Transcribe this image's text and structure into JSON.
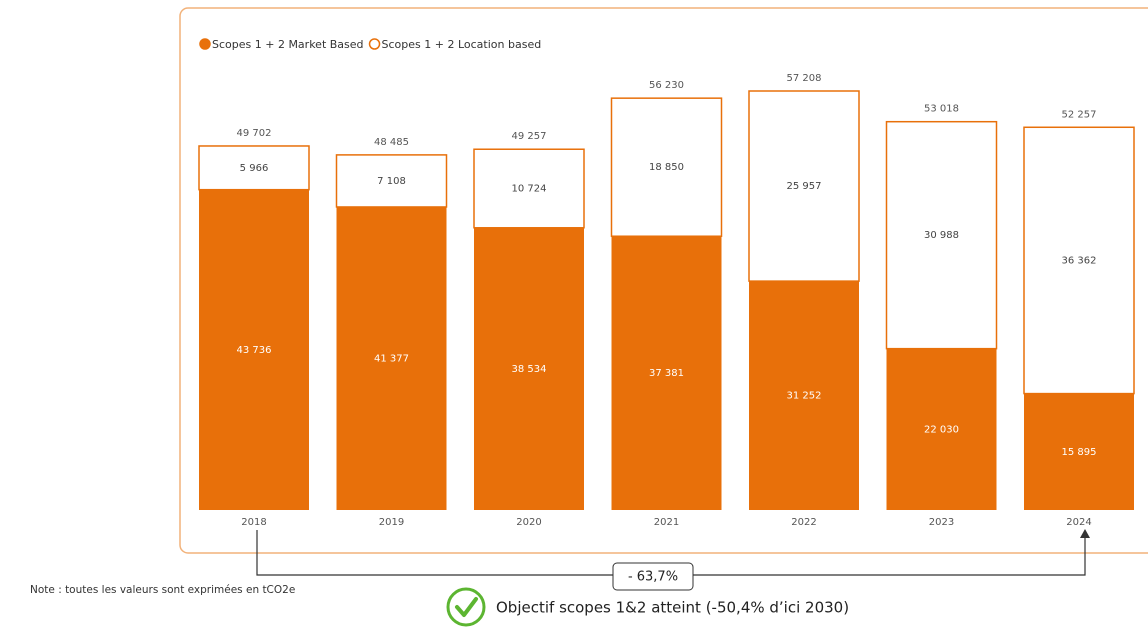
{
  "chart_data": {
    "type": "stacked_bar",
    "categories": [
      "2018",
      "2019",
      "2020",
      "2021",
      "2022",
      "2023",
      "2024"
    ],
    "series": [
      {
        "name": "Scopes 1 + 2 Market Based",
        "color": "#e8700a",
        "values": [
          43736,
          41377,
          38534,
          37381,
          31252,
          22030,
          15895
        ],
        "value_labels": [
          "43 736",
          "41 377",
          "38 534",
          "37 381",
          "31 252",
          "22 030",
          "15 895"
        ]
      },
      {
        "name": "Scopes 1 + 2 Location based",
        "color": "#ffffff",
        "values": [
          5966,
          7108,
          10724,
          18850,
          25957,
          30988,
          36362
        ],
        "value_labels": [
          "5 966",
          "7 108",
          "10 724",
          "18 850",
          "25 957",
          "30 988",
          "36 362"
        ]
      }
    ],
    "totals": [
      49702,
      48485,
      49257,
      56230,
      57208,
      53018,
      52257
    ],
    "total_labels": [
      "49 702",
      "48 485",
      "49 257",
      "56 230",
      "57 208",
      "53 018",
      "52 257"
    ],
    "annotations": {
      "change": "- 63,7%",
      "objective": "Objectif scopes 1&2 atteint (-50,4% d’ici 2030)",
      "note": "Note : toutes les valeurs sont exprimées en tCO2e"
    }
  }
}
